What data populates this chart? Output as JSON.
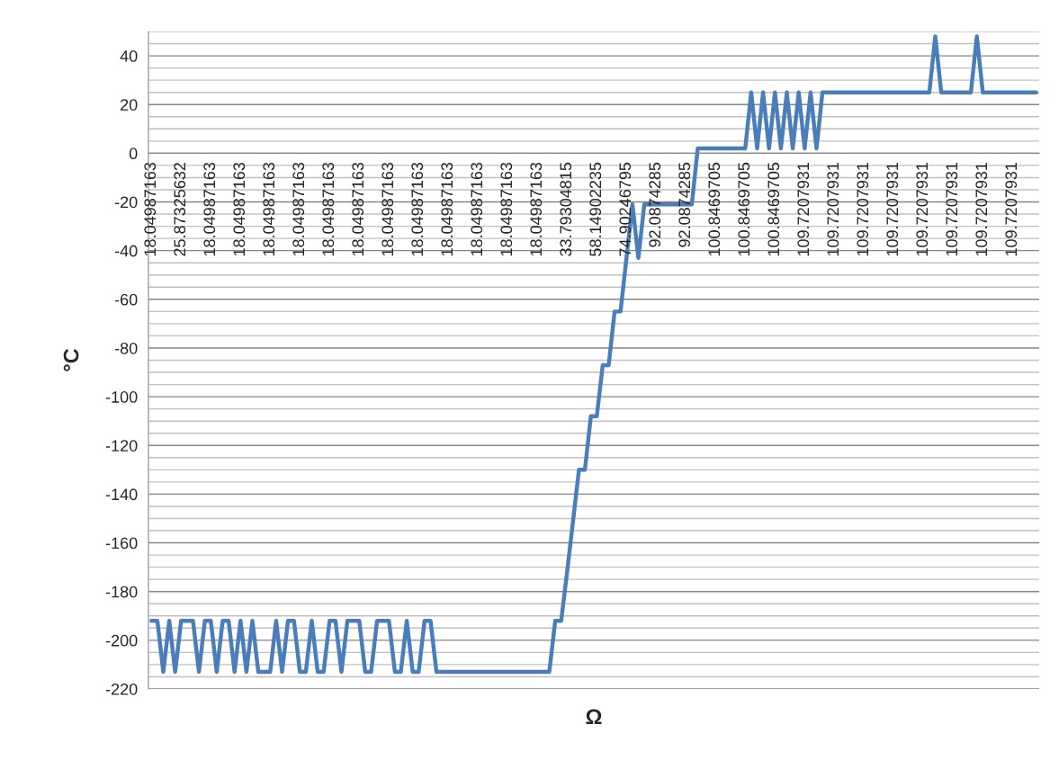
{
  "chart_data": {
    "type": "line",
    "xlabel": "Ω",
    "ylabel": "°C",
    "categories": [
      "18.04987163",
      null,
      null,
      null,
      null,
      "25.87325632",
      null,
      null,
      null,
      null,
      "18.04987163",
      null,
      null,
      null,
      null,
      "18.04987163",
      null,
      null,
      null,
      null,
      "18.04987163",
      null,
      null,
      null,
      null,
      "18.04987163",
      null,
      null,
      null,
      null,
      "18.04987163",
      null,
      null,
      null,
      null,
      "18.04987163",
      null,
      null,
      null,
      null,
      "18.04987163",
      null,
      null,
      null,
      null,
      "18.04987163",
      null,
      null,
      null,
      null,
      "18.04987163",
      null,
      null,
      null,
      null,
      "18.04987163",
      null,
      null,
      null,
      null,
      "18.04987163",
      null,
      null,
      null,
      null,
      "18.04987163",
      null,
      null,
      null,
      null,
      "33.79304815",
      null,
      null,
      null,
      null,
      "58.14902235",
      null,
      null,
      null,
      null,
      "74.90246795",
      null,
      null,
      null,
      null,
      "92.0874285",
      null,
      null,
      null,
      null,
      "92.0874285",
      null,
      null,
      null,
      null,
      "100.8469705",
      null,
      null,
      null,
      null,
      "100.8469705",
      null,
      null,
      null,
      null,
      "100.8469705",
      null,
      null,
      null,
      null,
      "109.7207931",
      null,
      null,
      null,
      null,
      "109.7207931",
      null,
      null,
      null,
      null,
      "109.7207931",
      null,
      null,
      null,
      null,
      "109.7207931",
      null,
      null,
      null,
      null,
      "109.7207931",
      null,
      null,
      null,
      null,
      "109.7207931",
      null,
      null,
      null,
      null,
      "109.7207931",
      null,
      null,
      null,
      null,
      "109.7207931",
      null,
      null,
      null,
      null
    ],
    "series": [
      {
        "color": "#4a7ebb",
        "values": [
          -192,
          -192,
          -213,
          -192,
          -213,
          -192,
          -192,
          -192,
          -213,
          -192,
          -192,
          -213,
          -192,
          -192,
          -213,
          -192,
          -213,
          -192,
          -213,
          -213,
          -213,
          -192,
          -213,
          -192,
          -192,
          -213,
          -213,
          -192,
          -213,
          -213,
          -192,
          -192,
          -213,
          -192,
          -192,
          -192,
          -213,
          -213,
          -192,
          -192,
          -192,
          -213,
          -213,
          -192,
          -213,
          -213,
          -192,
          -192,
          -213,
          -213,
          -213,
          -213,
          -213,
          -213,
          -213,
          -213,
          -213,
          -213,
          -213,
          -213,
          -213,
          -213,
          -213,
          -213,
          -213,
          -213,
          -213,
          -213,
          -192,
          -192,
          -172,
          -151,
          -130,
          -130,
          -108,
          -108,
          -87,
          -87,
          -65,
          -65,
          -43,
          -21,
          -43,
          -21,
          -21,
          -21,
          -21,
          -21,
          -21,
          -21,
          -21,
          -21,
          2,
          2,
          2,
          2,
          2,
          2,
          2,
          2,
          2,
          25,
          2,
          25,
          2,
          25,
          2,
          25,
          2,
          25,
          2,
          25,
          2,
          25,
          25,
          25,
          25,
          25,
          25,
          25,
          25,
          25,
          25,
          25,
          25,
          25,
          25,
          25,
          25,
          25,
          25,
          25,
          48,
          25,
          25,
          25,
          25,
          25,
          25,
          48,
          25,
          25,
          25,
          25,
          25,
          25,
          25,
          25,
          25,
          25
        ]
      }
    ],
    "ylim": [
      -220,
      50
    ],
    "yticks": [
      -220,
      {
        "value": -215,
        "label": null
      },
      {
        "value": -210,
        "label": null
      },
      {
        "value": -205,
        "label": null
      },
      -200,
      {
        "value": -195,
        "label": null
      },
      {
        "value": -190,
        "label": null
      },
      {
        "value": -185,
        "label": null
      },
      -180,
      {
        "value": -175,
        "label": null
      },
      {
        "value": -170,
        "label": null
      },
      {
        "value": -165,
        "label": null
      },
      -160,
      {
        "value": -155,
        "label": null
      },
      {
        "value": -150,
        "label": null
      },
      {
        "value": -145,
        "label": null
      },
      -140,
      {
        "value": -135,
        "label": null
      },
      {
        "value": -130,
        "label": null
      },
      {
        "value": -125,
        "label": null
      },
      -120,
      {
        "value": -115,
        "label": null
      },
      {
        "value": -110,
        "label": null
      },
      {
        "value": -105,
        "label": null
      },
      -100,
      {
        "value": -95,
        "label": null
      },
      {
        "value": -90,
        "label": null
      },
      {
        "value": -85,
        "label": null
      },
      -80,
      {
        "value": -75,
        "label": null
      },
      {
        "value": -70,
        "label": null
      },
      {
        "value": -65,
        "label": null
      },
      -60,
      {
        "value": -55,
        "label": null
      },
      {
        "value": -50,
        "label": null
      },
      {
        "value": -45,
        "label": null
      },
      -40,
      {
        "value": -35,
        "label": null
      },
      {
        "value": -30,
        "label": null
      },
      {
        "value": -25,
        "label": null
      },
      -20,
      {
        "value": -15,
        "label": null
      },
      {
        "value": -10,
        "label": null
      },
      {
        "value": -5,
        "label": null
      },
      0,
      {
        "value": 5,
        "label": null
      },
      {
        "value": 10,
        "label": null
      },
      {
        "value": 15,
        "label": null
      },
      20,
      {
        "value": 25,
        "label": null
      },
      {
        "value": 30,
        "label": null
      },
      {
        "value": 35,
        "label": null
      },
      40,
      {
        "value": 45,
        "label": null
      },
      {
        "value": 50,
        "label": null
      }
    ],
    "grid": "y",
    "marker": "none",
    "line_style": "solid"
  }
}
